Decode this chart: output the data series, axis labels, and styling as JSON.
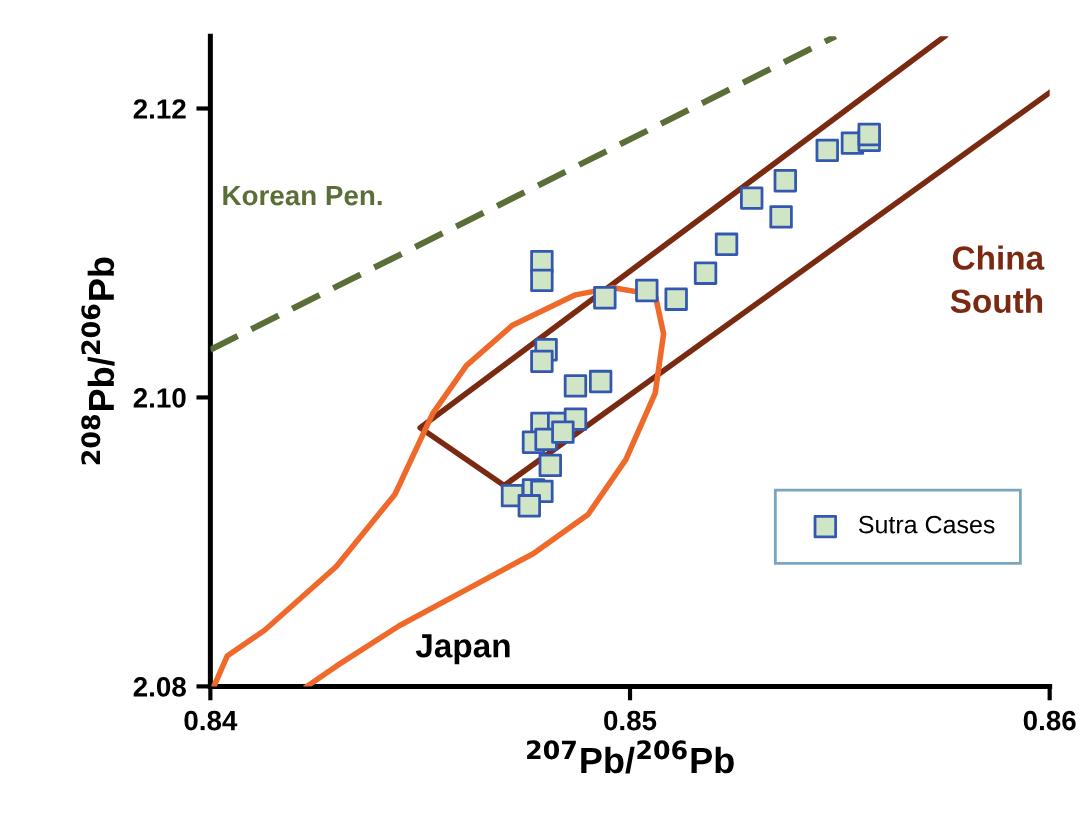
{
  "chart_data": {
    "type": "scatter",
    "xlabel": "$^{207}$Pb/$^{206}$Pb",
    "ylabel": "$^{208}$Pb/$^{206}$Pb",
    "xlim": [
      0.84,
      0.86
    ],
    "ylim": [
      2.08,
      2.125
    ],
    "xticks": [
      0.84,
      0.85,
      0.86
    ],
    "yticks": [
      2.08,
      {
        "value": 2.1,
        "label": "2.10"
      },
      2.12
    ],
    "grid": false,
    "legend": "bottom right",
    "series": [
      {
        "name": "Sutra Cases",
        "marker": "square",
        "color": "#cfe5c6",
        "x": [
          0.8479,
          0.8479,
          0.8494,
          0.8504,
          0.8511,
          0.8518,
          0.8523,
          0.8529,
          0.8537,
          0.8536,
          0.8547,
          0.8553,
          0.8557,
          0.8557,
          0.848,
          0.8479,
          0.8487,
          0.8493,
          0.8479,
          0.8483,
          0.8487,
          0.8477,
          0.848,
          0.8484,
          0.8481,
          0.8472,
          0.8477,
          0.8479,
          0.8476
        ],
        "values": [
          2.1094,
          2.1081,
          2.1069,
          2.1074,
          2.1068,
          2.1086,
          2.1106,
          2.1138,
          2.115,
          2.1125,
          2.1171,
          2.1176,
          2.1178,
          2.1182,
          2.1033,
          2.1025,
          2.1008,
          2.1011,
          2.0982,
          2.0982,
          2.0985,
          2.0969,
          2.0971,
          2.0976,
          2.0953,
          2.0932,
          2.0936,
          2.0935,
          2.0925
        ]
      },
      {
        "name": "Korean Pen.",
        "type": "line",
        "line_style": "dashed",
        "color": "#5b6e37",
        "x": [
          0.84,
          0.8549
        ],
        "values": [
          2.1033,
          2.125
        ]
      },
      {
        "name": "China\nSouth",
        "type": "line",
        "line_style": "solid",
        "color": "#7b2a12",
        "x": [
          0.8575,
          0.845,
          0.847,
          0.86
        ],
        "values": [
          2.125,
          2.0979,
          2.0939,
          2.1211
        ]
      },
      {
        "name": "Japan",
        "type": "line",
        "line_style": "solid",
        "color": "#ef6a2a",
        "x": [
          0.8401,
          0.8404,
          0.8413,
          0.843,
          0.8444,
          0.8453,
          0.8461,
          0.8472,
          0.8487,
          0.8496,
          0.8506,
          0.8508,
          0.8506,
          0.8499,
          0.849,
          0.8477,
          0.8461,
          0.8445,
          0.843,
          0.8423
        ],
        "values": [
          2.0801,
          2.0821,
          2.0839,
          2.0883,
          2.0933,
          2.0989,
          2.1022,
          2.105,
          2.1071,
          2.1076,
          2.1071,
          2.1044,
          2.1003,
          2.0957,
          2.0919,
          2.0892,
          2.0867,
          2.0842,
          2.0814,
          2.08
        ]
      }
    ]
  }
}
